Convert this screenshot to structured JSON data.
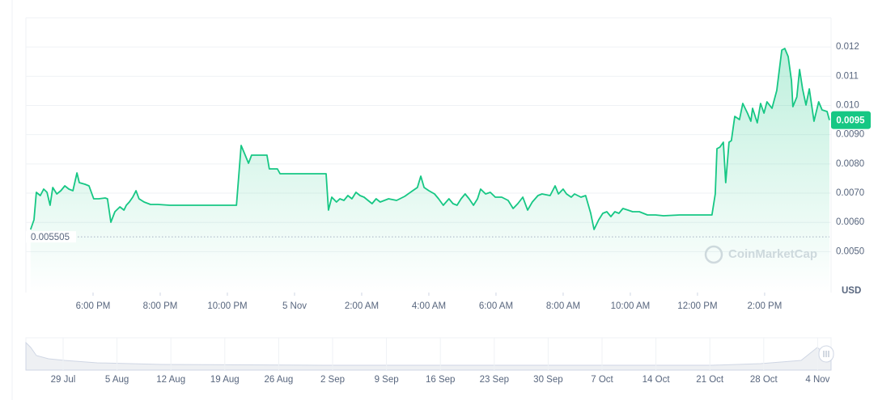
{
  "chart_data": [
    {
      "type": "line",
      "color": "#16c784",
      "x": [
        16.14,
        16.24,
        16.31,
        16.43,
        16.53,
        16.63,
        16.72,
        16.8,
        16.92,
        17.04,
        17.16,
        17.28,
        17.4,
        17.52,
        17.59,
        17.76,
        17.88,
        18.02,
        18.17,
        18.36,
        18.43,
        18.53,
        18.65,
        18.8,
        18.92,
        18.99,
        19.08,
        19.18,
        19.28,
        19.37,
        19.52,
        19.71,
        19.93,
        20.29,
        21.01,
        21.73,
        22.27,
        22.41,
        22.53,
        22.63,
        22.72,
        22.94,
        23.18,
        23.25,
        23.49,
        23.57,
        23.9,
        24.39,
        24.94,
        25.01,
        25.11,
        25.25,
        25.35,
        25.47,
        25.59,
        25.71,
        25.83,
        25.95,
        26.07,
        26.19,
        26.31,
        26.43,
        26.55,
        26.8,
        27.04,
        27.28,
        27.52,
        27.66,
        27.76,
        27.86,
        28.0,
        28.17,
        28.29,
        28.43,
        28.6,
        28.72,
        28.84,
        28.96,
        29.08,
        29.2,
        29.33,
        29.45,
        29.54,
        29.69,
        29.83,
        29.98,
        30.17,
        30.36,
        30.51,
        30.65,
        30.8,
        30.94,
        31.08,
        31.25,
        31.37,
        31.61,
        31.76,
        31.86,
        32.0,
        32.1,
        32.24,
        32.34,
        32.53,
        32.67,
        32.82,
        32.92,
        33.06,
        33.18,
        33.3,
        33.42,
        33.54,
        33.66,
        33.78,
        33.93,
        34.07,
        34.27,
        34.51,
        34.75,
        34.99,
        35.47,
        35.95,
        36.43,
        36.53,
        36.58,
        36.67,
        36.77,
        36.84,
        36.94,
        37.01,
        37.11,
        37.25,
        37.35,
        37.49,
        37.59,
        37.64,
        37.78,
        37.88,
        37.98,
        38.07,
        38.22,
        38.36,
        38.51,
        38.6,
        38.7,
        38.8,
        38.84,
        38.96,
        39.04,
        39.13,
        39.23,
        39.33,
        39.47,
        39.61,
        39.71,
        39.86,
        39.93
      ],
      "values": [
        0.005756,
        0.006088,
        0.007028,
        0.006918,
        0.007139,
        0.007028,
        0.006586,
        0.007194,
        0.006973,
        0.007084,
        0.007249,
        0.007139,
        0.007084,
        0.007692,
        0.00736,
        0.007305,
        0.007249,
        0.006807,
        0.006807,
        0.006835,
        0.006807,
        0.006005,
        0.006365,
        0.006531,
        0.00642,
        0.006586,
        0.006696,
        0.006862,
        0.007084,
        0.006807,
        0.006696,
        0.006614,
        0.006614,
        0.006586,
        0.006586,
        0.006586,
        0.006586,
        0.008632,
        0.0083,
        0.008024,
        0.0083,
        0.0083,
        0.0083,
        0.00783,
        0.00783,
        0.007664,
        0.007664,
        0.007664,
        0.007664,
        0.00642,
        0.006862,
        0.006696,
        0.006807,
        0.006752,
        0.006918,
        0.006807,
        0.007028,
        0.006918,
        0.006862,
        0.006752,
        0.006641,
        0.006807,
        0.006696,
        0.006807,
        0.006752,
        0.00689,
        0.007084,
        0.007194,
        0.007581,
        0.007194,
        0.007084,
        0.006973,
        0.006807,
        0.006586,
        0.006807,
        0.006641,
        0.006586,
        0.006807,
        0.006973,
        0.006807,
        0.006586,
        0.006807,
        0.007139,
        0.006973,
        0.007028,
        0.006862,
        0.006862,
        0.006752,
        0.006475,
        0.006641,
        0.006862,
        0.00642,
        0.006696,
        0.006918,
        0.006973,
        0.006918,
        0.007249,
        0.006973,
        0.007139,
        0.006973,
        0.006862,
        0.006973,
        0.006862,
        0.006918,
        0.006309,
        0.005756,
        0.006088,
        0.006309,
        0.006365,
        0.006199,
        0.006365,
        0.006309,
        0.006475,
        0.00642,
        0.006365,
        0.006365,
        0.006254,
        0.006254,
        0.006227,
        0.006254,
        0.006254,
        0.006254,
        0.006973,
        0.008521,
        0.008576,
        0.008742,
        0.00736,
        0.008742,
        0.008797,
        0.009627,
        0.009516,
        0.010069,
        0.009738,
        0.009461,
        0.009904,
        0.009406,
        0.010069,
        0.009738,
        0.010125,
        0.009904,
        0.010512,
        0.011894,
        0.011949,
        0.011673,
        0.010844,
        0.009959,
        0.010291,
        0.011231,
        0.010567,
        0.010014,
        0.010567,
        0.009461,
        0.010125,
        0.009848,
        0.009793,
        0.0095
      ],
      "xlim": [
        16,
        39.93
      ],
      "xticks": [
        {
          "value": 18,
          "label": "6:00 PM"
        },
        {
          "value": 20,
          "label": "8:00 PM"
        },
        {
          "value": 22,
          "label": "10:00 PM"
        },
        {
          "value": 24,
          "label": "5 Nov"
        },
        {
          "value": 26,
          "label": "2:00 AM"
        },
        {
          "value": 28,
          "label": "4:00 AM"
        },
        {
          "value": 30,
          "label": "6:00 AM"
        },
        {
          "value": 32,
          "label": "8:00 AM"
        },
        {
          "value": 34,
          "label": "10:00 AM"
        },
        {
          "value": 36,
          "label": "12:00 PM"
        },
        {
          "value": 38,
          "label": "2:00 PM"
        }
      ],
      "ylim": [
        0.0036,
        0.013
      ],
      "yticks": [
        {
          "value": 0.005,
          "label": "0.0050"
        },
        {
          "value": 0.006,
          "label": "0.0060"
        },
        {
          "value": 0.007,
          "label": "0.0070"
        },
        {
          "value": 0.008,
          "label": "0.0080"
        },
        {
          "value": 0.009,
          "label": "0.0090"
        },
        {
          "value": 0.01,
          "label": "0.010"
        },
        0.011,
        0.012
      ],
      "grid": true,
      "low": 0.005505,
      "last": 0.0095,
      "y_label": "USD",
      "watermark": "CoinMarketCap"
    },
    {
      "type": "area",
      "categories": [
        "29 Jul",
        "5 Aug",
        "12 Aug",
        "19 Aug",
        "26 Aug",
        "2 Sep",
        "9 Sep",
        "16 Sep",
        "23 Sep",
        "30 Sep",
        "7 Oct",
        "14 Oct",
        "21 Oct",
        "28 Oct",
        "4 Nov"
      ]
    }
  ]
}
